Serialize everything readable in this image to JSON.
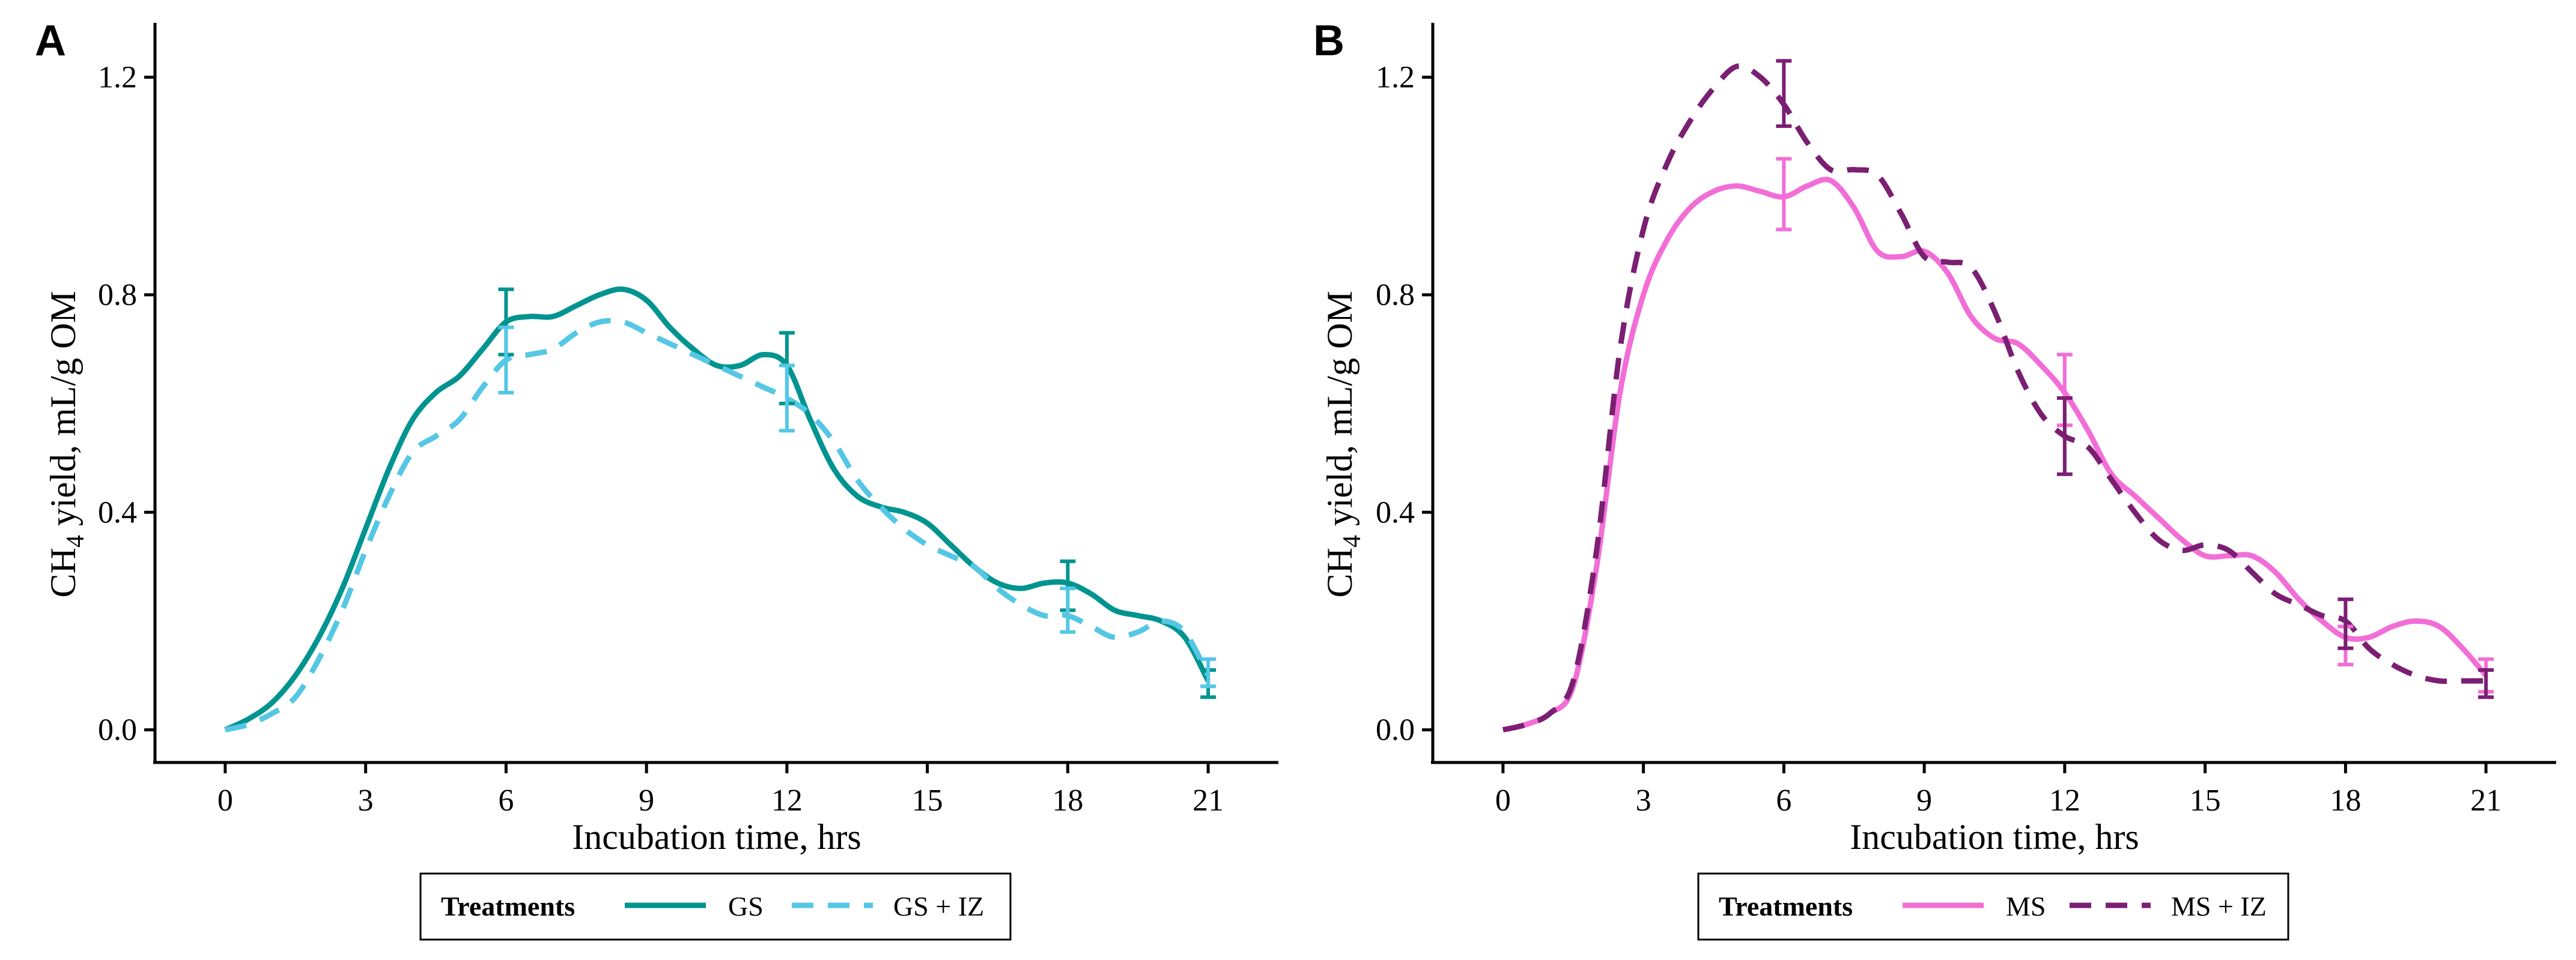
{
  "chart_data": [
    {
      "type": "line",
      "panel_label": "A",
      "title": "",
      "xlabel": "Incubation time, hrs",
      "ylabel_prefix": "CH",
      "ylabel_subscript": "4",
      "ylabel_suffix": " yield, mL/g OM",
      "xlim": [
        -1.5,
        22.5
      ],
      "ylim": [
        -0.06,
        1.3
      ],
      "xticks": [
        0,
        3,
        6,
        9,
        12,
        15,
        18,
        21
      ],
      "yticks": [
        0.0,
        0.4,
        0.8,
        1.2
      ],
      "ytick_labels": [
        "0.0",
        "0.4",
        "0.8",
        "1.2"
      ],
      "grid": false,
      "legend_position": "bottom",
      "legend_title": "Treatments",
      "series": [
        {
          "name": "GS",
          "color": "#009490",
          "dash": "solid",
          "x": [
            0,
            0.5,
            1,
            1.5,
            2,
            2.5,
            3,
            3.5,
            4,
            4.5,
            5,
            5.5,
            6,
            6.5,
            7,
            7.5,
            8,
            8.5,
            9,
            9.5,
            10,
            10.5,
            11,
            11.5,
            12,
            12.5,
            13,
            13.5,
            14,
            14.5,
            15,
            15.5,
            16,
            16.5,
            17,
            17.5,
            18,
            18.5,
            19,
            19.5,
            20,
            20.5,
            21
          ],
          "y": [
            0.0,
            0.02,
            0.05,
            0.1,
            0.17,
            0.26,
            0.37,
            0.48,
            0.57,
            0.62,
            0.65,
            0.7,
            0.75,
            0.76,
            0.76,
            0.78,
            0.8,
            0.81,
            0.79,
            0.74,
            0.7,
            0.67,
            0.67,
            0.69,
            0.67,
            0.57,
            0.48,
            0.43,
            0.41,
            0.4,
            0.38,
            0.34,
            0.3,
            0.27,
            0.26,
            0.27,
            0.27,
            0.25,
            0.22,
            0.21,
            0.2,
            0.17,
            0.09
          ]
        },
        {
          "name": "GS + IZ",
          "color": "#55C7E5",
          "dash": "dashed",
          "x": [
            0,
            0.5,
            1,
            1.5,
            2,
            2.5,
            3,
            3.5,
            4,
            4.5,
            5,
            5.5,
            6,
            6.5,
            7,
            7.5,
            8,
            8.5,
            9,
            9.5,
            10,
            10.5,
            11,
            11.5,
            12,
            12.5,
            13,
            13.5,
            14,
            14.5,
            15,
            15.5,
            16,
            16.5,
            17,
            17.5,
            18,
            18.5,
            19,
            19.5,
            20,
            20.5,
            21
          ],
          "y": [
            0.0,
            0.01,
            0.03,
            0.06,
            0.13,
            0.22,
            0.33,
            0.43,
            0.51,
            0.54,
            0.57,
            0.63,
            0.68,
            0.69,
            0.7,
            0.73,
            0.75,
            0.75,
            0.73,
            0.71,
            0.69,
            0.67,
            0.65,
            0.63,
            0.61,
            0.58,
            0.53,
            0.46,
            0.41,
            0.37,
            0.34,
            0.32,
            0.3,
            0.26,
            0.23,
            0.21,
            0.21,
            0.19,
            0.17,
            0.18,
            0.2,
            0.18,
            0.1
          ]
        }
      ],
      "error_bars": [
        {
          "series": "GS",
          "x": 6,
          "low": 0.69,
          "high": 0.81
        },
        {
          "series": "GS + IZ",
          "x": 6,
          "low": 0.62,
          "high": 0.74
        },
        {
          "series": "GS",
          "x": 12,
          "low": 0.6,
          "high": 0.73
        },
        {
          "series": "GS + IZ",
          "x": 12,
          "low": 0.55,
          "high": 0.67
        },
        {
          "series": "GS",
          "x": 18,
          "low": 0.22,
          "high": 0.31
        },
        {
          "series": "GS + IZ",
          "x": 18,
          "low": 0.18,
          "high": 0.26
        },
        {
          "series": "GS",
          "x": 21,
          "low": 0.06,
          "high": 0.11
        },
        {
          "series": "GS + IZ",
          "x": 21,
          "low": 0.08,
          "high": 0.13
        }
      ]
    },
    {
      "type": "line",
      "panel_label": "B",
      "title": "",
      "xlabel": "Incubation time, hrs",
      "ylabel_prefix": "CH",
      "ylabel_subscript": "4",
      "ylabel_suffix": " yield, mL/g OM",
      "xlim": [
        -1.5,
        22.5
      ],
      "ylim": [
        -0.06,
        1.3
      ],
      "xticks": [
        0,
        3,
        6,
        9,
        12,
        15,
        18,
        21
      ],
      "yticks": [
        0.0,
        0.4,
        0.8,
        1.2
      ],
      "ytick_labels": [
        "0.0",
        "0.4",
        "0.8",
        "1.2"
      ],
      "grid": false,
      "legend_position": "bottom",
      "legend_title": "Treatments",
      "series": [
        {
          "name": "MS",
          "color": "#F26ED7",
          "dash": "solid",
          "x": [
            0,
            0.5,
            1,
            1.5,
            2,
            2.5,
            3,
            3.5,
            4,
            4.5,
            5,
            5.5,
            6,
            6.5,
            7,
            7.5,
            8,
            8.5,
            9,
            9.5,
            10,
            10.5,
            11,
            11.5,
            12,
            12.5,
            13,
            13.5,
            14,
            14.5,
            15,
            15.5,
            16,
            16.5,
            17,
            17.5,
            18,
            18.5,
            19,
            19.5,
            20,
            20.5,
            21
          ],
          "y": [
            0.0,
            0.01,
            0.03,
            0.08,
            0.3,
            0.62,
            0.8,
            0.9,
            0.96,
            0.99,
            1.0,
            0.99,
            0.98,
            1.0,
            1.01,
            0.96,
            0.88,
            0.87,
            0.88,
            0.84,
            0.76,
            0.72,
            0.71,
            0.67,
            0.62,
            0.55,
            0.47,
            0.43,
            0.39,
            0.35,
            0.32,
            0.32,
            0.32,
            0.29,
            0.24,
            0.2,
            0.17,
            0.17,
            0.19,
            0.2,
            0.19,
            0.15,
            0.1
          ]
        },
        {
          "name": "MS + IZ",
          "color": "#7B1F72",
          "dash": "dashed",
          "x": [
            0,
            0.5,
            1,
            1.5,
            2,
            2.5,
            3,
            3.5,
            4,
            4.5,
            5,
            5.5,
            6,
            6.5,
            7,
            7.5,
            8,
            8.5,
            9,
            9.5,
            10,
            10.5,
            11,
            11.5,
            12,
            12.5,
            13,
            13.5,
            14,
            14.5,
            15,
            15.5,
            16,
            16.5,
            17,
            17.5,
            18,
            18.5,
            19,
            19.5,
            20,
            20.5,
            21
          ],
          "y": [
            0.0,
            0.01,
            0.03,
            0.09,
            0.33,
            0.7,
            0.92,
            1.04,
            1.12,
            1.18,
            1.22,
            1.2,
            1.15,
            1.08,
            1.03,
            1.03,
            1.02,
            0.95,
            0.87,
            0.86,
            0.85,
            0.77,
            0.66,
            0.58,
            0.54,
            0.52,
            0.46,
            0.4,
            0.35,
            0.33,
            0.34,
            0.33,
            0.29,
            0.25,
            0.23,
            0.21,
            0.2,
            0.15,
            0.12,
            0.1,
            0.09,
            0.09,
            0.09
          ]
        }
      ],
      "error_bars": [
        {
          "series": "MS",
          "x": 6,
          "low": 0.92,
          "high": 1.05
        },
        {
          "series": "MS + IZ",
          "x": 6,
          "low": 1.11,
          "high": 1.23
        },
        {
          "series": "MS",
          "x": 12,
          "low": 0.56,
          "high": 0.69
        },
        {
          "series": "MS + IZ",
          "x": 12,
          "low": 0.47,
          "high": 0.61
        },
        {
          "series": "MS",
          "x": 18,
          "low": 0.12,
          "high": 0.19
        },
        {
          "series": "MS + IZ",
          "x": 18,
          "low": 0.15,
          "high": 0.24
        },
        {
          "series": "MS",
          "x": 21,
          "low": 0.07,
          "high": 0.13
        },
        {
          "series": "MS + IZ",
          "x": 21,
          "low": 0.06,
          "high": 0.11
        }
      ]
    }
  ]
}
